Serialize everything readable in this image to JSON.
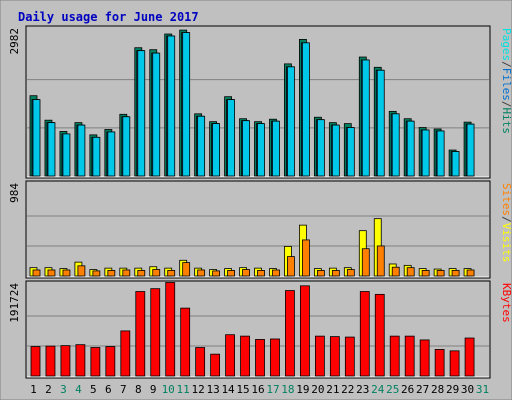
{
  "chart_data": {
    "type": "bar",
    "title": "Daily usage for June 2017",
    "x": [
      "1",
      "2",
      "3",
      "4",
      "5",
      "6",
      "7",
      "8",
      "9",
      "10",
      "11",
      "12",
      "13",
      "14",
      "15",
      "16",
      "17",
      "18",
      "19",
      "20",
      "21",
      "22",
      "23",
      "24",
      "25",
      "26",
      "27",
      "28",
      "29",
      "30",
      "31"
    ],
    "weekend_days": [
      "3",
      "4",
      "10",
      "11",
      "17",
      "18",
      "24",
      "25",
      "31"
    ],
    "panels": [
      {
        "id": "hits",
        "ymax_label": "2982",
        "ymax": 2982,
        "legend": [
          "Pages",
          "/",
          "Files",
          "/",
          "Hits"
        ],
        "legend_colors": [
          "#00e0e0",
          "#404040",
          "#0070d0",
          "#404040",
          "#008060"
        ],
        "series": [
          {
            "name": "Hits",
            "color": "#008060",
            "values": [
              1640,
              1140,
              910,
              1090,
              840,
              950,
              1260,
              2620,
              2580,
              2900,
              2980,
              1270,
              1110,
              1620,
              1170,
              1110,
              1160,
              2290,
              2790,
              1200,
              1090,
              1070,
              2430,
              2220,
              1320,
              1170,
              990,
              960,
              530,
              1100,
              0
            ]
          },
          {
            "name": "Files",
            "color": "#0070d0",
            "values": [
              1560,
              1090,
              860,
              1040,
              790,
              900,
              1210,
              2560,
              2510,
              2860,
              2930,
              1220,
              1070,
              1560,
              1130,
              1070,
              1120,
              2230,
              2720,
              1150,
              1040,
              990,
              2370,
              2160,
              1270,
              1120,
              940,
              920,
              500,
              1060,
              0
            ]
          },
          {
            "name": "Pages",
            "color": "#00c8e8",
            "values": [
              1560,
              1090,
              860,
              1040,
              790,
              900,
              1210,
              2560,
              2510,
              2860,
              2930,
              1220,
              1070,
              1560,
              1130,
              1070,
              1120,
              2230,
              2720,
              1150,
              1040,
              990,
              2370,
              2160,
              1270,
              1120,
              940,
              920,
              500,
              1060,
              0
            ]
          }
        ]
      },
      {
        "id": "visits",
        "ymax_label": "984",
        "ymax": 984,
        "legend": [
          "Sites",
          "/",
          "Visits"
        ],
        "legend_colors": [
          "#ff8000",
          "#404040",
          "#ffff00"
        ],
        "series": [
          {
            "name": "Visits",
            "color": "#ffff00",
            "values": [
              90,
              90,
              80,
              150,
              70,
              85,
              85,
              85,
              100,
              85,
              170,
              85,
              70,
              80,
              90,
              85,
              80,
              320,
              550,
              80,
              85,
              90,
              490,
              620,
              130,
              115,
              80,
              75,
              80,
              80,
              0
            ]
          },
          {
            "name": "Sites",
            "color": "#ff8000",
            "values": [
              65,
              65,
              65,
              110,
              55,
              60,
              65,
              60,
              70,
              60,
              145,
              65,
              55,
              60,
              70,
              60,
              65,
              210,
              390,
              60,
              60,
              70,
              295,
              325,
              95,
              90,
              60,
              60,
              60,
              65,
              0
            ]
          }
        ]
      },
      {
        "id": "kbytes",
        "ymax_label": "191724",
        "ymax": 191724,
        "legend": [
          "KBytes"
        ],
        "legend_colors": [
          "#ff0000"
        ],
        "series": [
          {
            "name": "KBytes",
            "color": "#ff0000",
            "values": [
              62000,
              63000,
              64000,
              66000,
              60000,
              62000,
              95000,
              178000,
              184000,
              197000,
              143000,
              60000,
              46000,
              87000,
              84000,
              77000,
              78000,
              180000,
              190000,
              84000,
              83000,
              82000,
              178000,
              172000,
              84000,
              84000,
              76000,
              56000,
              53000,
              80000,
              0
            ]
          }
        ]
      }
    ]
  }
}
